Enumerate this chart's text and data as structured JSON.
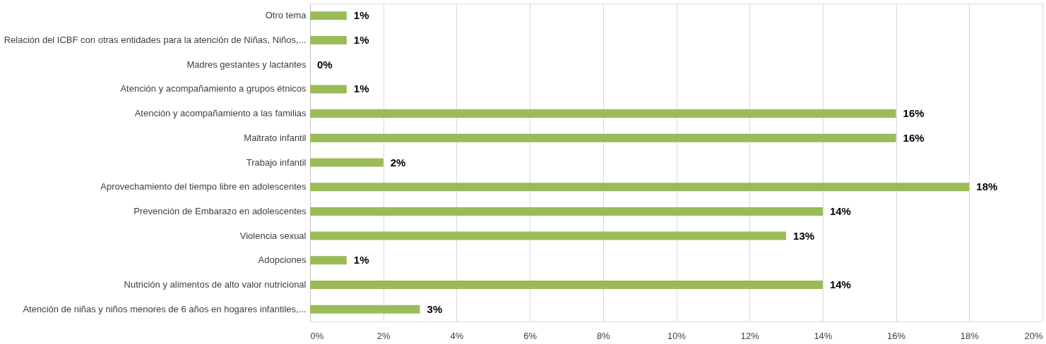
{
  "chart_data": {
    "type": "bar",
    "orientation": "horizontal",
    "categories": [
      "Otro tema",
      "Relación del ICBF con otras entidades para la atención de Niñas, Niños,...",
      "Madres gestantes y lactantes",
      "Atención y acompañamiento a grupos étnicos",
      "Atención y acompañamiento a las familias",
      "Maltrato infantil",
      "Trabajo infantil",
      "Aprovechamiento del tiempo libre en adolescentes",
      "Prevención de Embarazo en adolescentes",
      "Violencia sexual",
      "Adopciones",
      "Nutrición y alimentos de alto valor nutricional",
      "Atención de niñas y niños menores de 6 años en hogares infantiles,..."
    ],
    "values": [
      1,
      1,
      0,
      1,
      16,
      16,
      2,
      18,
      14,
      13,
      1,
      14,
      3
    ],
    "value_labels": [
      "1%",
      "1%",
      "0%",
      "1%",
      "16%",
      "16%",
      "2%",
      "18%",
      "14%",
      "13%",
      "1%",
      "14%",
      "3%"
    ],
    "color": "#9bbb59",
    "xlim": [
      0,
      20
    ],
    "xticks": [
      {
        "value": 0,
        "label": "0%"
      },
      {
        "value": 2,
        "label": "2%"
      },
      {
        "value": 4,
        "label": "4%"
      },
      {
        "value": 6,
        "label": "6%"
      },
      {
        "value": 8,
        "label": "8%"
      },
      {
        "value": 10,
        "label": "10%"
      },
      {
        "value": 12,
        "label": "12%"
      },
      {
        "value": 14,
        "label": "14%"
      },
      {
        "value": 16,
        "label": "16%"
      },
      {
        "value": 18,
        "label": "18%"
      },
      {
        "value": 20,
        "label": "20%"
      }
    ],
    "grid": "x"
  }
}
